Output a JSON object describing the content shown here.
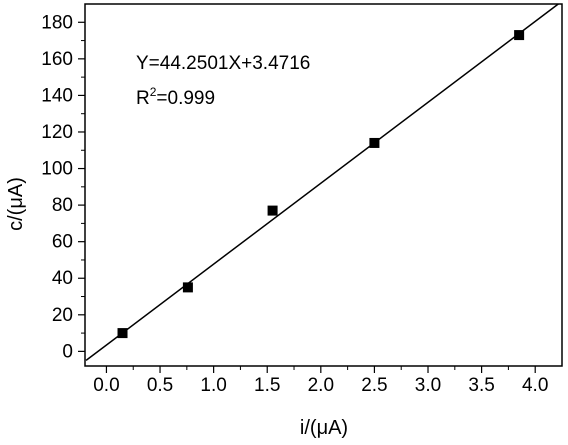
{
  "chart_data": {
    "type": "scatter",
    "title": "",
    "xlabel": "i/(μA)",
    "ylabel": "c/(μA)",
    "xlim": [
      -0.2,
      4.25
    ],
    "ylim": [
      -8,
      190
    ],
    "xticks": [
      0.0,
      0.5,
      1.0,
      1.5,
      2.0,
      2.5,
      3.0,
      3.5,
      4.0
    ],
    "xtick_labels": [
      "0.0",
      "0.5",
      "1.0",
      "1.5",
      "2.0",
      "2.5",
      "3.0",
      "3.5",
      "4.0"
    ],
    "yticks": [
      0,
      20,
      40,
      60,
      80,
      100,
      120,
      140,
      160,
      180
    ],
    "ytick_labels": [
      "0",
      "20",
      "40",
      "60",
      "80",
      "100",
      "120",
      "140",
      "160",
      "180"
    ],
    "grid": false,
    "legend": "none",
    "series": [
      {
        "points": [
          {
            "x": 0.15,
            "y": 10
          },
          {
            "x": 0.76,
            "y": 35
          },
          {
            "x": 1.55,
            "y": 77
          },
          {
            "x": 2.5,
            "y": 114
          },
          {
            "x": 3.85,
            "y": 173
          }
        ],
        "marker": "square",
        "color": "#000000"
      }
    ],
    "fit_line": {
      "slope": 44.2501,
      "intercept": 3.4716,
      "color": "#000000"
    },
    "annotations": {
      "equation": "Y=44.2501X+3.4716",
      "r2_prefix": "R",
      "r2_exponent": "2",
      "r2_value": "=0.999"
    }
  }
}
